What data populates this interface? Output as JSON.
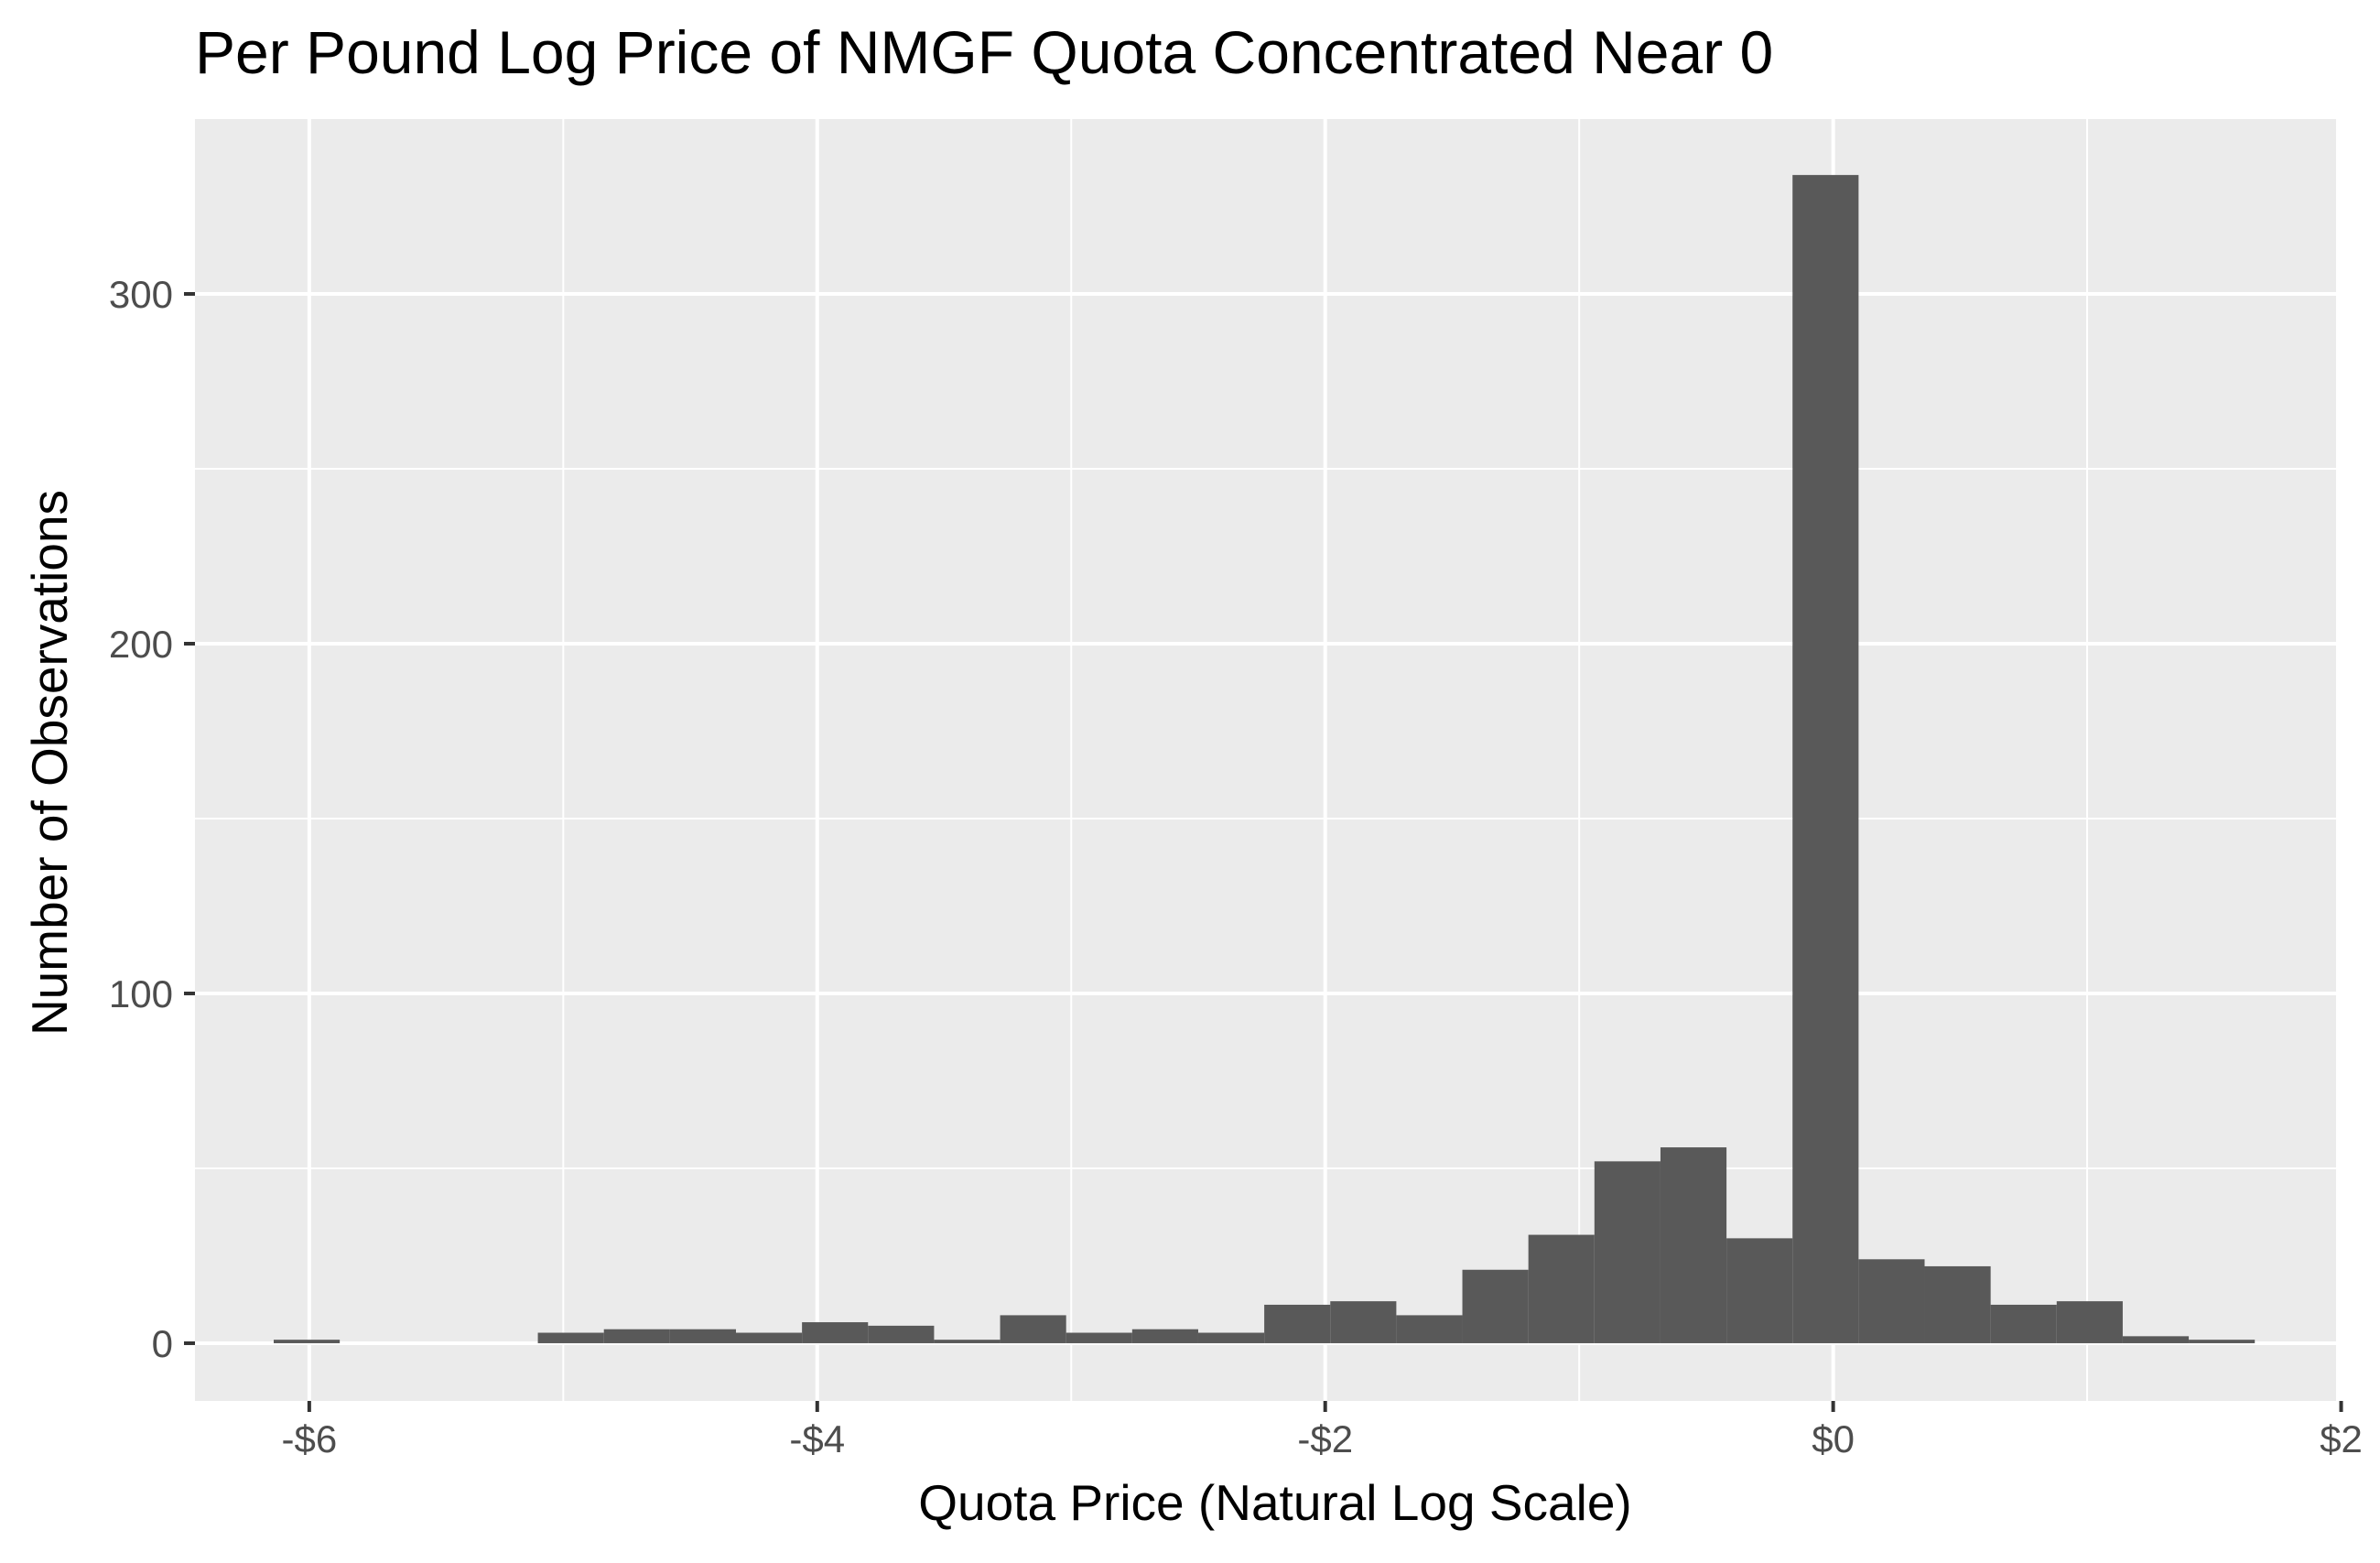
{
  "chart_data": {
    "type": "bar",
    "title": "Per Pound Log Price of NMGF Quota Concentrated Near 0",
    "xlabel": "Quota Price (Natural Log Scale)",
    "ylabel": "Number of Observations",
    "xlim": [
      -6.45,
      1.98
    ],
    "ylim": [
      -16.5,
      350
    ],
    "x_ticks": [
      {
        "value": -6,
        "label": "-$6"
      },
      {
        "value": -4,
        "label": "-$4"
      },
      {
        "value": -2,
        "label": "-$2"
      },
      {
        "value": 0,
        "label": "$0"
      },
      {
        "value": 2,
        "label": "$2"
      }
    ],
    "y_ticks": [
      {
        "value": 0,
        "label": "0"
      },
      {
        "value": 100,
        "label": "100"
      },
      {
        "value": 200,
        "label": "200"
      },
      {
        "value": 300,
        "label": "300"
      }
    ],
    "bins": [
      {
        "x0": -6.14,
        "x1": -5.88,
        "count": 1
      },
      {
        "x0": -5.88,
        "x1": -5.62,
        "count": 0
      },
      {
        "x0": -5.62,
        "x1": -5.36,
        "count": 0
      },
      {
        "x0": -5.36,
        "x1": -5.1,
        "count": 0
      },
      {
        "x0": -5.1,
        "x1": -4.84,
        "count": 3
      },
      {
        "x0": -4.84,
        "x1": -4.58,
        "count": 4
      },
      {
        "x0": -4.58,
        "x1": -4.32,
        "count": 4
      },
      {
        "x0": -4.32,
        "x1": -4.06,
        "count": 3
      },
      {
        "x0": -4.06,
        "x1": -3.8,
        "count": 6
      },
      {
        "x0": -3.8,
        "x1": -3.54,
        "count": 5
      },
      {
        "x0": -3.54,
        "x1": -3.28,
        "count": 1
      },
      {
        "x0": -3.28,
        "x1": -3.02,
        "count": 8
      },
      {
        "x0": -3.02,
        "x1": -2.76,
        "count": 3
      },
      {
        "x0": -2.76,
        "x1": -2.5,
        "count": 4
      },
      {
        "x0": -2.5,
        "x1": -2.24,
        "count": 3
      },
      {
        "x0": -2.24,
        "x1": -1.98,
        "count": 11
      },
      {
        "x0": -1.98,
        "x1": -1.72,
        "count": 12
      },
      {
        "x0": -1.72,
        "x1": -1.46,
        "count": 8
      },
      {
        "x0": -1.46,
        "x1": -1.2,
        "count": 21
      },
      {
        "x0": -1.2,
        "x1": -0.94,
        "count": 31
      },
      {
        "x0": -0.94,
        "x1": -0.68,
        "count": 52
      },
      {
        "x0": -0.68,
        "x1": -0.42,
        "count": 56
      },
      {
        "x0": -0.42,
        "x1": -0.16,
        "count": 30
      },
      {
        "x0": -0.16,
        "x1": 0.1,
        "count": 334
      },
      {
        "x0": 0.1,
        "x1": 0.36,
        "count": 24
      },
      {
        "x0": 0.36,
        "x1": 0.62,
        "count": 22
      },
      {
        "x0": 0.62,
        "x1": 0.88,
        "count": 11
      },
      {
        "x0": 0.88,
        "x1": 1.14,
        "count": 12
      },
      {
        "x0": 1.14,
        "x1": 1.4,
        "count": 2
      },
      {
        "x0": 1.4,
        "x1": 1.66,
        "count": 1
      }
    ],
    "grid": true,
    "legend": "none",
    "colors": {
      "panel_background": "#ebebeb",
      "grid_major": "#ffffff",
      "grid_minor": "#ffffff",
      "bar_fill": "#595959",
      "tick_label": "#4d4d4d",
      "axis_tick": "#333333"
    }
  }
}
